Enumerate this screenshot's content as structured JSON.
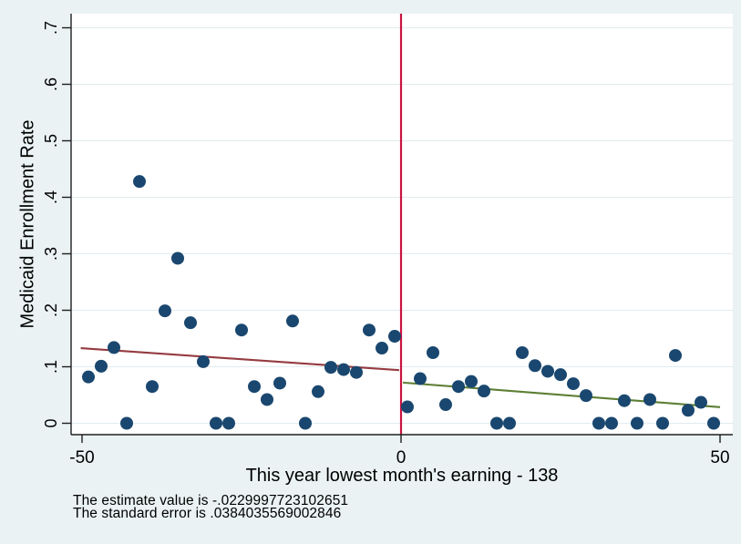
{
  "chart_data": {
    "type": "scatter",
    "title": "",
    "xlabel": "This year lowest month's earning - 138",
    "ylabel": "Medicaid Enrollment Rate",
    "xlim": [
      -51.7,
      52
    ],
    "ylim": [
      -0.02,
      0.725
    ],
    "x_ticks": [
      -50,
      0,
      50
    ],
    "x_tick_labels": [
      "-50",
      "0",
      "50"
    ],
    "y_ticks": [
      0,
      0.1,
      0.2,
      0.3,
      0.4,
      0.5,
      0.6,
      0.7
    ],
    "y_tick_labels": [
      "0",
      ".1",
      ".2",
      ".3",
      ".4",
      ".5",
      ".6",
      ".7"
    ],
    "grid": true,
    "legend": false,
    "cutoff_x": 0,
    "series": [
      {
        "name": "binned-scatter-left",
        "type": "scatter",
        "points": [
          [
            -49,
            0.082
          ],
          [
            -47,
            0.101
          ],
          [
            -45,
            0.134
          ],
          [
            -43,
            0
          ],
          [
            -41,
            0.428
          ],
          [
            -39,
            0.065
          ],
          [
            -37,
            0.199
          ],
          [
            -35,
            0.292
          ],
          [
            -33,
            0.178
          ],
          [
            -31,
            0.109
          ],
          [
            -29,
            0
          ],
          [
            -27,
            0
          ],
          [
            -25,
            0.165
          ],
          [
            -23,
            0.065
          ],
          [
            -21,
            0.042
          ],
          [
            -19,
            0.071
          ],
          [
            -17,
            0.181
          ],
          [
            -15,
            0
          ],
          [
            -13,
            0.056
          ],
          [
            -11,
            0.099
          ],
          [
            -9,
            0.095
          ],
          [
            -7,
            0.09
          ],
          [
            -5,
            0.165
          ],
          [
            -3,
            0.133
          ],
          [
            -1,
            0.154
          ]
        ]
      },
      {
        "name": "binned-scatter-right",
        "type": "scatter",
        "points": [
          [
            1,
            0.029
          ],
          [
            3,
            0.079
          ],
          [
            5,
            0.125
          ],
          [
            7,
            0.033
          ],
          [
            9,
            0.065
          ],
          [
            11,
            0.074
          ],
          [
            13,
            0.057
          ],
          [
            15,
            0
          ],
          [
            17,
            0
          ],
          [
            19,
            0.125
          ],
          [
            21,
            0.102
          ],
          [
            23,
            0.092
          ],
          [
            25,
            0.086
          ],
          [
            27,
            0.07
          ],
          [
            29,
            0.049
          ],
          [
            31,
            0
          ],
          [
            33,
            0
          ],
          [
            35,
            0.04
          ],
          [
            37,
            0
          ],
          [
            39,
            0.042
          ],
          [
            41,
            0
          ],
          [
            43,
            0.12
          ],
          [
            45,
            0.023
          ],
          [
            47,
            0.037
          ],
          [
            49,
            0
          ]
        ]
      },
      {
        "name": "linear-fit-left",
        "type": "line",
        "points": [
          [
            -50.2,
            0.133
          ],
          [
            -0.3,
            0.094
          ]
        ]
      },
      {
        "name": "linear-fit-right",
        "type": "line",
        "points": [
          [
            0.3,
            0.072
          ],
          [
            50,
            0.0285
          ]
        ]
      }
    ]
  },
  "notes": {
    "lines": [
      "The estimate value is -.0229997723102651",
      "The standard error is .0384035569002846"
    ]
  },
  "colors": {
    "background": "#eaf2f3",
    "plot_background": "#ffffff",
    "gridline": "#e0ebee",
    "axis": "#1f1f1f",
    "marker": "#1a476f",
    "cutoff_line": "#c8143f",
    "fit_left": "#953b41",
    "fit_right": "#5d7f34",
    "text": "#000000"
  }
}
